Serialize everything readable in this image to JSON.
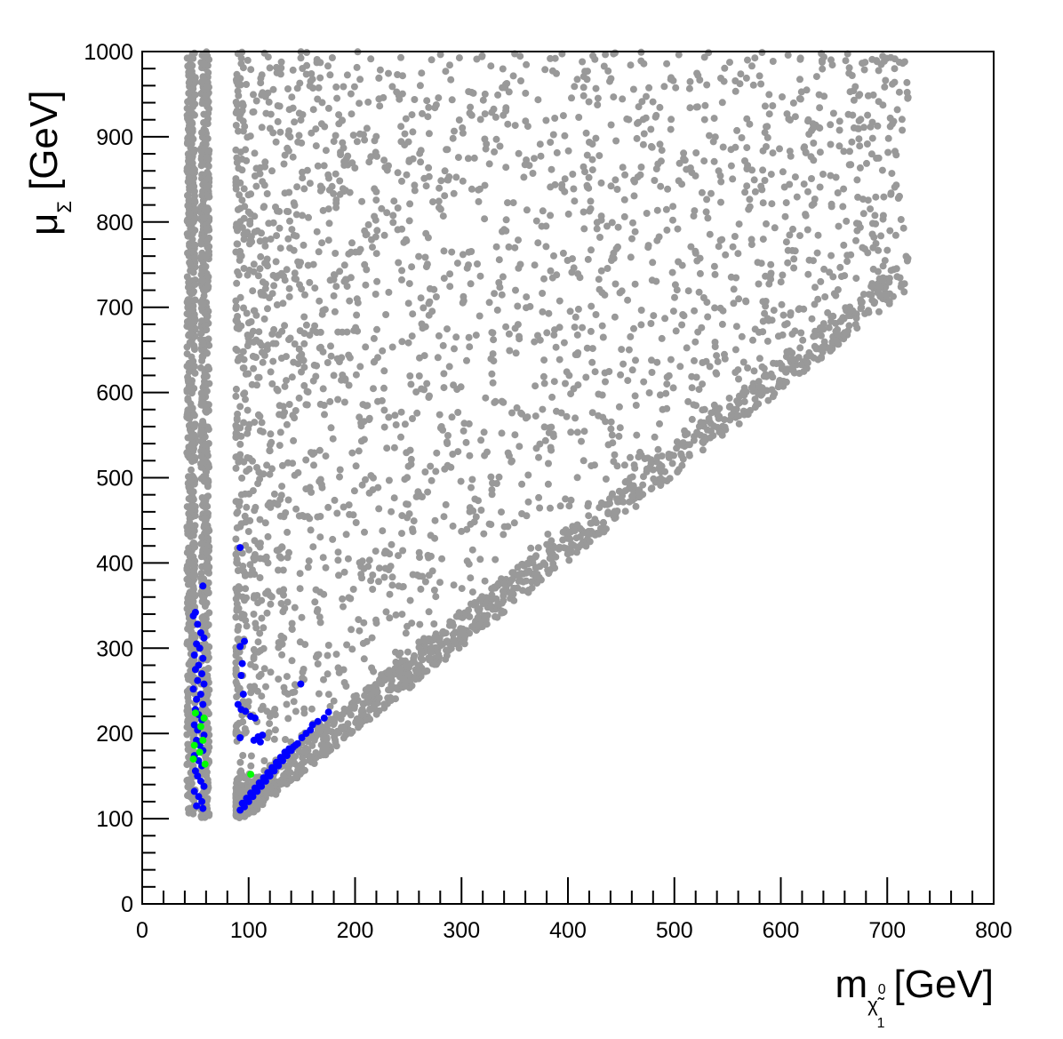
{
  "chart_data": {
    "type": "scatter",
    "title": "",
    "xlabel": {
      "main": "m",
      "subscript": "χ̃",
      "subscript_superscript": "0",
      "subscript_subscript": "1",
      "unit": "[GeV]"
    },
    "ylabel": {
      "main": "μ",
      "subscript": "Σ",
      "unit": "[GeV]"
    },
    "xlim": [
      0,
      800
    ],
    "ylim": [
      0,
      1000
    ],
    "x_ticks": [
      "0",
      "100",
      "200",
      "300",
      "400",
      "500",
      "600",
      "700",
      "800"
    ],
    "y_ticks": [
      "0",
      "100",
      "200",
      "300",
      "400",
      "500",
      "600",
      "700",
      "800",
      "900",
      "1000"
    ],
    "grid": false,
    "legend": "none",
    "colors": {
      "gray": "#999999",
      "blue": "#0000ff",
      "green": "#00ff00"
    },
    "regions": [
      {
        "x_range": [
          42,
          50
        ],
        "y_range": [
          105,
          1000
        ],
        "point_count": 600
      },
      {
        "x_range": [
          55,
          63
        ],
        "y_range": [
          100,
          1000
        ],
        "point_count": 600
      },
      {
        "x_range": [
          88,
          720
        ],
        "y_range": [
          100,
          1000
        ],
        "point_count": 3500,
        "lower_bound": "y >= x"
      }
    ],
    "series": [
      {
        "color": "#0000ff",
        "points": [
          [
            50,
            342
          ],
          [
            48,
            338
          ],
          [
            57,
            373
          ],
          [
            52,
            328
          ],
          [
            55,
            318
          ],
          [
            58,
            312
          ],
          [
            51,
            305
          ],
          [
            54,
            300
          ],
          [
            49,
            292
          ],
          [
            57,
            288
          ],
          [
            53,
            280
          ],
          [
            50,
            275
          ],
          [
            56,
            270
          ],
          [
            52,
            262
          ],
          [
            58,
            258
          ],
          [
            48,
            252
          ],
          [
            55,
            246
          ],
          [
            51,
            240
          ],
          [
            57,
            234
          ],
          [
            50,
            228
          ],
          [
            53,
            222
          ],
          [
            56,
            216
          ],
          [
            49,
            210
          ],
          [
            52,
            204
          ],
          [
            58,
            198
          ],
          [
            51,
            192
          ],
          [
            54,
            186
          ],
          [
            57,
            180
          ],
          [
            49,
            174
          ],
          [
            53,
            168
          ],
          [
            56,
            162
          ],
          [
            50,
            156
          ],
          [
            52,
            150
          ],
          [
            55,
            144
          ],
          [
            58,
            138
          ],
          [
            49,
            132
          ],
          [
            53,
            126
          ],
          [
            56,
            120
          ],
          [
            51,
            115
          ],
          [
            57,
            112
          ],
          [
            92,
            418
          ],
          [
            92,
            302
          ],
          [
            96,
            308
          ],
          [
            94,
            282
          ],
          [
            93,
            268
          ],
          [
            95,
            246
          ],
          [
            90,
            234
          ],
          [
            93,
            228
          ],
          [
            97,
            226
          ],
          [
            102,
            220
          ],
          [
            106,
            218
          ],
          [
            109,
            196
          ],
          [
            105,
            192
          ],
          [
            113,
            198
          ],
          [
            111,
            190
          ],
          [
            92,
            195
          ],
          [
            149,
            258
          ],
          [
            175,
            225
          ],
          [
            171,
            218
          ],
          [
            92,
            110
          ],
          [
            94,
            118
          ],
          [
            96,
            114
          ],
          [
            98,
            124
          ],
          [
            100,
            120
          ],
          [
            102,
            130
          ],
          [
            104,
            126
          ],
          [
            106,
            136
          ],
          [
            108,
            132
          ],
          [
            110,
            142
          ],
          [
            112,
            138
          ],
          [
            114,
            148
          ],
          [
            116,
            144
          ],
          [
            118,
            154
          ],
          [
            120,
            150
          ],
          [
            122,
            160
          ],
          [
            124,
            156
          ],
          [
            126,
            166
          ],
          [
            128,
            162
          ],
          [
            130,
            172
          ],
          [
            132,
            168
          ],
          [
            134,
            178
          ],
          [
            136,
            174
          ],
          [
            138,
            182
          ],
          [
            140,
            180
          ],
          [
            142,
            184
          ],
          [
            144,
            186
          ],
          [
            146,
            188
          ],
          [
            150,
            195
          ],
          [
            154,
            200
          ],
          [
            158,
            204
          ],
          [
            160,
            210
          ],
          [
            165,
            214
          ]
        ]
      },
      {
        "color": "#00ff00",
        "points": [
          [
            50,
            224
          ],
          [
            58,
            218
          ],
          [
            55,
            208
          ],
          [
            57,
            192
          ],
          [
            49,
            186
          ],
          [
            54,
            178
          ],
          [
            48,
            170
          ],
          [
            59,
            164
          ],
          [
            102,
            152
          ]
        ]
      }
    ]
  }
}
